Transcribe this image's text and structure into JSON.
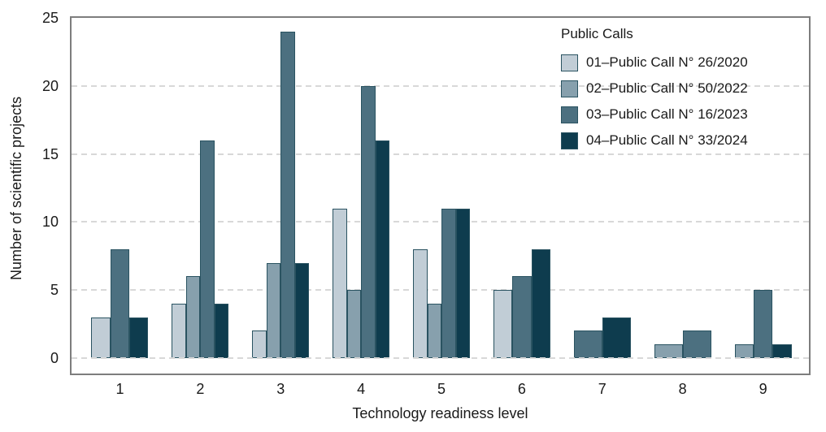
{
  "figure": {
    "background": "#ffffff",
    "plot_border_color": "#7d7d7d",
    "grid_color": "#d8d8d8",
    "text_color": "#1a1a1a",
    "bar_edge_color": "#2a5361"
  },
  "chart_data": {
    "type": "bar",
    "title": "",
    "legend_title": "Public Calls",
    "legend_position": "upper right",
    "xlabel": "Technology readiness level",
    "ylabel": "Number of scientific projects",
    "categories": [
      "1",
      "2",
      "3",
      "4",
      "5",
      "6",
      "7",
      "8",
      "9"
    ],
    "yticks": [
      0,
      5,
      10,
      15,
      20,
      25
    ],
    "ylim": [
      0,
      25
    ],
    "grid": "horizontal-dashed",
    "group_behavior": "bars with zero value are omitted and remaining bars in the group widen to fill the group slot",
    "series": [
      {
        "name": "01–Public Call N° 26/2020",
        "color": "#c1cdd6",
        "values": [
          3,
          4,
          2,
          11,
          8,
          5,
          0,
          0,
          0
        ]
      },
      {
        "name": "02–Public Call N° 50/2022",
        "color": "#87a0ad",
        "values": [
          0,
          6,
          7,
          5,
          4,
          0,
          0,
          1,
          1
        ]
      },
      {
        "name": "03–Public Call N° 16/2023",
        "color": "#4c7080",
        "values": [
          8,
          16,
          24,
          20,
          11,
          6,
          2,
          2,
          5
        ]
      },
      {
        "name": "04–Public Call N° 33/2024",
        "color": "#0e3c4e",
        "values": [
          3,
          4,
          7,
          16,
          11,
          8,
          3,
          0,
          1
        ]
      }
    ]
  }
}
